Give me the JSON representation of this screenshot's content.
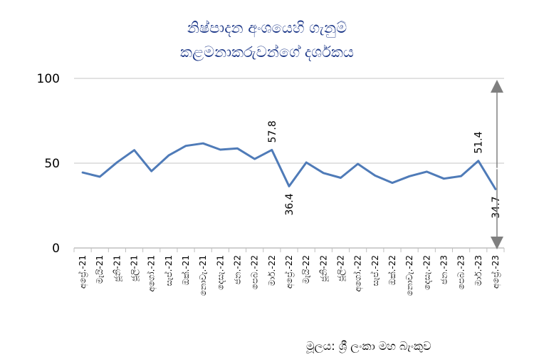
{
  "chart_data": {
    "type": "line",
    "title_lines": [
      "නිෂ්පාදන අංශයෙහි ගැනුම්",
      "කළමනාකරුවන්ගේ දර්ශකය"
    ],
    "source": "මූලය: ශ්‍රී ලංකා මහ බැංකුව",
    "categories": [
      "අප්‍රේ.-21",
      "මැයි-21",
      "ජූනි-21",
      "ජූලි-21",
      "අගෝ.-21",
      "සැප්.-21",
      "ඔක්.-21",
      "නොවැ.-21",
      "දෙසැ.-21",
      "ජන.-22",
      "පෙබ.-22",
      "මාර්.-22",
      "අප්‍රේ.-22",
      "මැයි-22",
      "ජූනි-22",
      "ජූලි-22",
      "අගෝ.-22",
      "සැප්.-22",
      "ඔක්.-22",
      "නොවැ.-22",
      "දෙසැ.-22",
      "ජන.-23",
      "පෙබ.-23",
      "මාර්.-23",
      "අප්‍රේ.-23"
    ],
    "series": [
      {
        "values": [
          44.5,
          42.0,
          50.5,
          57.7,
          45.3,
          54.6,
          60.2,
          61.7,
          58.0,
          58.7,
          52.5,
          57.8,
          36.4,
          50.4,
          44.2,
          41.4,
          49.6,
          42.7,
          38.4,
          42.3,
          45.0,
          40.9,
          42.4,
          51.4,
          34.7
        ]
      }
    ],
    "data_labels": [
      {
        "index": 11,
        "text": "57.8",
        "position": "above"
      },
      {
        "index": 12,
        "text": "36.4",
        "position": "below"
      },
      {
        "index": 23,
        "text": "51.4",
        "position": "above"
      },
      {
        "index": 24,
        "text": "34.7",
        "position": "below"
      }
    ],
    "yticks": [
      "0",
      "50",
      "100"
    ],
    "ylim": [
      0,
      100
    ],
    "grid": true,
    "reference_arrows": "right",
    "colors": {
      "line": "#4f7bb8",
      "grid": "#d9d9d9",
      "axis": "#bfbfbf",
      "arrow": "#7f7f7f",
      "title": "#1f3a8a"
    }
  }
}
